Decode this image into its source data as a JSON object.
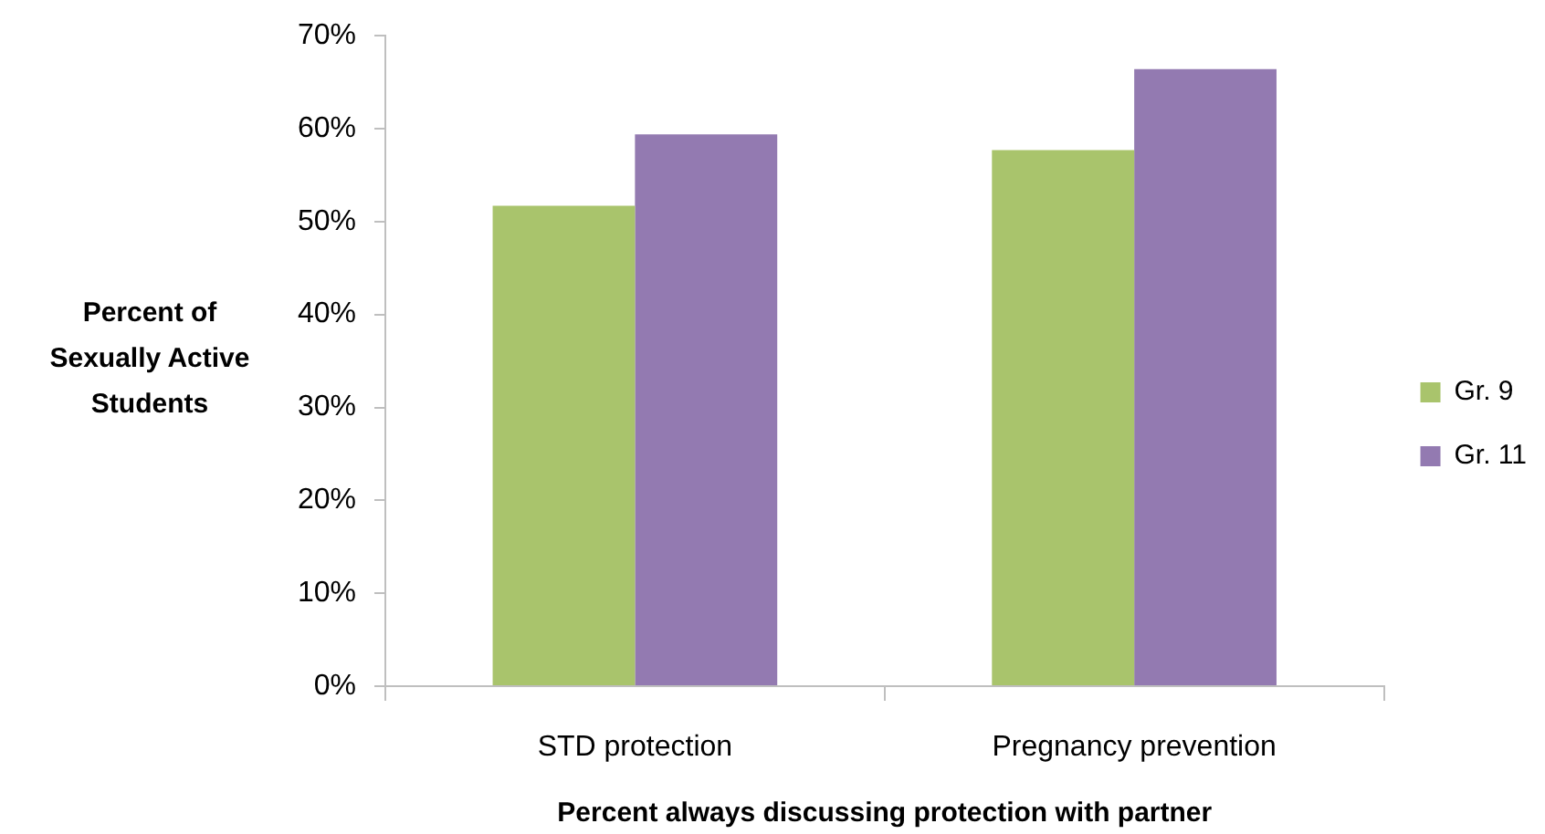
{
  "chart_data": {
    "type": "bar",
    "xlabel": "Percent always discussing protection with partner",
    "ylabel": "Percent of Sexually Active Students",
    "categories": [
      "STD protection",
      "Pregnancy prevention"
    ],
    "series": [
      {
        "name": "Gr. 9",
        "color": "#a9c46c",
        "values": [
          51.7,
          57.7
        ]
      },
      {
        "name": "Gr. 11",
        "color": "#937ab1",
        "values": [
          59.4,
          66.4
        ]
      }
    ],
    "ylim": [
      0,
      70
    ],
    "yticks": [
      {
        "value": 0,
        "label": "0%"
      },
      {
        "value": 10,
        "label": "10%"
      },
      {
        "value": 20,
        "label": "20%"
      },
      {
        "value": 30,
        "label": "30%"
      },
      {
        "value": 40,
        "label": "40%"
      },
      {
        "value": 50,
        "label": "50%"
      },
      {
        "value": 60,
        "label": "60%"
      },
      {
        "value": 70,
        "label": "70%"
      }
    ],
    "grid": false,
    "legend": "right"
  }
}
